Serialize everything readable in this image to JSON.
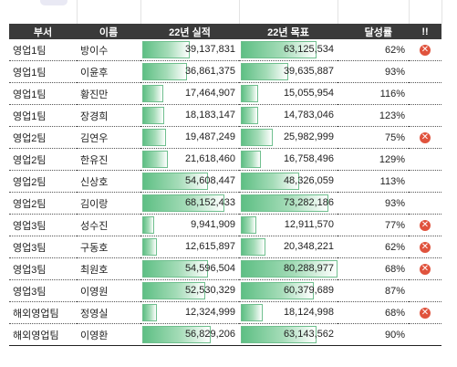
{
  "headers": [
    "부서",
    "이름",
    "22년 실적",
    "22년 목표",
    "달성률",
    "!!"
  ],
  "bar_max": 82000000,
  "rows": [
    {
      "dept": "영업1팀",
      "name": "방이수",
      "actual": "39,137,831",
      "actual_v": 39137831,
      "target": "63,125,534",
      "target_v": 63125534,
      "rate": "62%",
      "alert": true
    },
    {
      "dept": "영업1팀",
      "name": "이윤후",
      "actual": "36,861,375",
      "actual_v": 36861375,
      "target": "39,635,887",
      "target_v": 39635887,
      "rate": "93%",
      "alert": false
    },
    {
      "dept": "영업1팀",
      "name": "황진만",
      "actual": "17,464,907",
      "actual_v": 17464907,
      "target": "15,055,954",
      "target_v": 15055954,
      "rate": "116%",
      "alert": false
    },
    {
      "dept": "영업1팀",
      "name": "장경희",
      "actual": "18,183,147",
      "actual_v": 18183147,
      "target": "14,783,046",
      "target_v": 14783046,
      "rate": "123%",
      "alert": false
    },
    {
      "dept": "영업2팀",
      "name": "김연우",
      "actual": "19,487,249",
      "actual_v": 19487249,
      "target": "25,982,999",
      "target_v": 25982999,
      "rate": "75%",
      "alert": true
    },
    {
      "dept": "영업2팀",
      "name": "한유진",
      "actual": "21,618,460",
      "actual_v": 21618460,
      "target": "16,758,496",
      "target_v": 16758496,
      "rate": "129%",
      "alert": false
    },
    {
      "dept": "영업2팀",
      "name": "신상호",
      "actual": "54,608,447",
      "actual_v": 54608447,
      "target": "48,326,059",
      "target_v": 48326059,
      "rate": "113%",
      "alert": false
    },
    {
      "dept": "영업2팀",
      "name": "김이랑",
      "actual": "68,152,433",
      "actual_v": 68152433,
      "target": "73,282,186",
      "target_v": 73282186,
      "rate": "93%",
      "alert": false
    },
    {
      "dept": "영업3팀",
      "name": "성수진",
      "actual": "9,941,909",
      "actual_v": 9941909,
      "target": "12,911,570",
      "target_v": 12911570,
      "rate": "77%",
      "alert": true
    },
    {
      "dept": "영업3팀",
      "name": "구동호",
      "actual": "12,615,897",
      "actual_v": 12615897,
      "target": "20,348,221",
      "target_v": 20348221,
      "rate": "62%",
      "alert": true
    },
    {
      "dept": "영업3팀",
      "name": "최원호",
      "actual": "54,596,504",
      "actual_v": 54596504,
      "target": "80,288,977",
      "target_v": 80288977,
      "rate": "68%",
      "alert": true
    },
    {
      "dept": "영업3팀",
      "name": "이영원",
      "actual": "52,530,329",
      "actual_v": 52530329,
      "target": "60,379,689",
      "target_v": 60379689,
      "rate": "87%",
      "alert": false
    },
    {
      "dept": "해외영업팀",
      "name": "정영실",
      "actual": "12,324,999",
      "actual_v": 12324999,
      "target": "18,124,998",
      "target_v": 18124998,
      "rate": "68%",
      "alert": true
    },
    {
      "dept": "해외영업팀",
      "name": "이영환",
      "actual": "56,829,206",
      "actual_v": 56829206,
      "target": "63,143,562",
      "target_v": 63143562,
      "rate": "90%",
      "alert": false
    }
  ],
  "alert_icon": "x-circle-icon",
  "alert_color": "#e0533d",
  "bar_color": "#5ebf84"
}
